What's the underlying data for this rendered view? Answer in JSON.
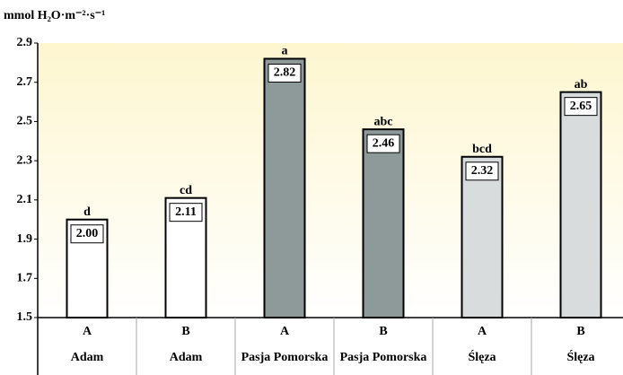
{
  "chart_data": {
    "type": "bar",
    "y_label": "mmol H₂O·m⁻²·s⁻¹",
    "categories": [
      "A",
      "B",
      "A",
      "B",
      "A",
      "B"
    ],
    "groups": [
      "Adam",
      "Adam",
      "Pasja Pomorska",
      "Pasja Pomorska",
      "Ślęza",
      "Ślęza"
    ],
    "values": [
      2.0,
      2.11,
      2.82,
      2.46,
      2.32,
      2.65
    ],
    "value_labels": [
      "2.00",
      "2.11",
      "2.82",
      "2.46",
      "2.32",
      "2.65"
    ],
    "letters": [
      "d",
      "cd",
      "a",
      "abc",
      "bcd",
      "ab"
    ],
    "colors": [
      "#ffffff",
      "#ffffff",
      "#8e9a9a",
      "#8e9a9a",
      "#d8dcdc",
      "#d8dcdc"
    ],
    "ylim": [
      1.5,
      2.9
    ],
    "yticks": [
      1.5,
      1.7,
      1.9,
      2.1,
      2.3,
      2.5,
      2.7,
      2.9
    ]
  }
}
